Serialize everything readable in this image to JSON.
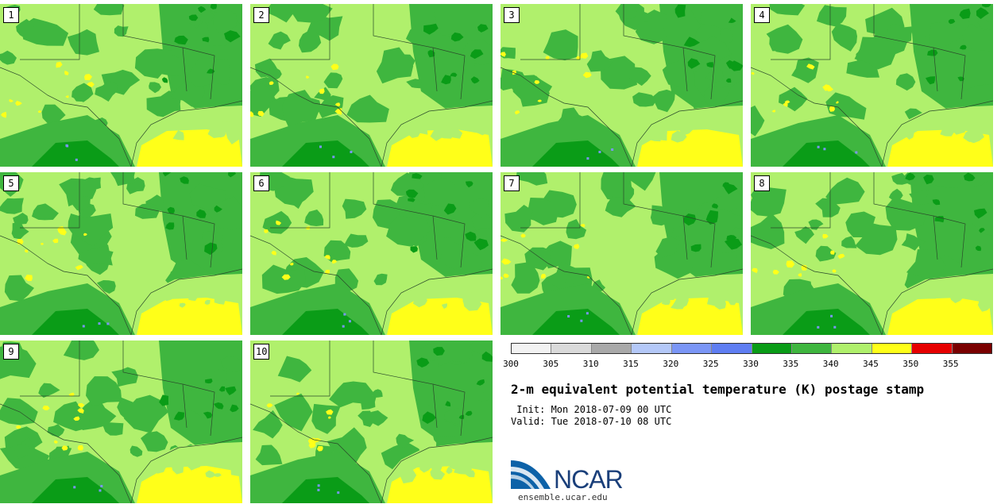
{
  "panels": [
    "1",
    "2",
    "3",
    "4",
    "5",
    "6",
    "7",
    "8",
    "9",
    "10"
  ],
  "colorbar": {
    "colors": [
      "#f2f2f2",
      "#dadada",
      "#a9a9a9",
      "#b4c8f8",
      "#7b96f6",
      "#5f7ef2",
      "#0a9c17",
      "#3fb63f",
      "#b0f06c",
      "#ffff19",
      "#e60000",
      "#7a0000"
    ],
    "ticks": [
      "300",
      "305",
      "310",
      "315",
      "320",
      "325",
      "330",
      "335",
      "340",
      "345",
      "350",
      "355"
    ]
  },
  "title": "2-m equivalent potential temperature (K) postage stamp",
  "init": " Init: Mon 2018-07-09 00 UTC",
  "valid": "Valid: Tue 2018-07-10 08 UTC",
  "logo_text": "NCAR",
  "site": "ensemble.ucar.edu",
  "map_colors": {
    "light_green": "#b0f06c",
    "green": "#3fb63f",
    "dark_green": "#0a9c17",
    "yellow": "#ffff19",
    "blue": "#7b96f6"
  }
}
